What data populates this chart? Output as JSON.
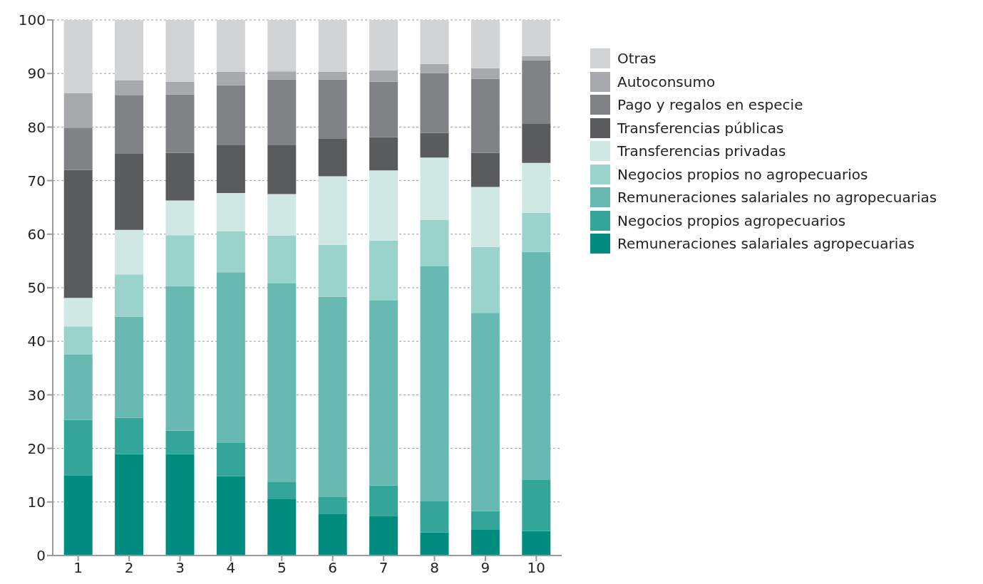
{
  "chart_data": {
    "type": "bar",
    "stacked": true,
    "categories": [
      "1",
      "2",
      "3",
      "4",
      "5",
      "6",
      "7",
      "8",
      "9",
      "10"
    ],
    "ylim": [
      0,
      100
    ],
    "yticks": [
      0,
      10,
      20,
      30,
      40,
      50,
      60,
      70,
      80,
      90,
      100
    ],
    "grid": "y",
    "legend": "top right",
    "series": [
      {
        "name": "Remuneraciones salariales agropecuarias",
        "color": "#008c7e",
        "values": [
          15.0,
          18.9,
          18.9,
          14.8,
          10.5,
          7.7,
          7.4,
          4.3,
          4.8,
          4.6
        ]
      },
      {
        "name": "Negocios propios agropecuarios",
        "color": "#33a699",
        "values": [
          10.3,
          6.8,
          4.4,
          6.2,
          3.2,
          3.3,
          5.7,
          5.9,
          3.5,
          9.6
        ]
      },
      {
        "name": "Remuneraciones salariales no agropecuarias",
        "color": "#68b9b2",
        "values": [
          12.2,
          18.9,
          27.0,
          31.9,
          37.1,
          37.3,
          34.5,
          43.8,
          37.0,
          42.5
        ]
      },
      {
        "name": "Negocios propios no agropecuarios",
        "color": "#9ad2cc",
        "values": [
          5.3,
          7.9,
          9.5,
          7.6,
          8.9,
          9.7,
          11.2,
          8.7,
          12.3,
          7.3
        ]
      },
      {
        "name": "Transferencias privadas",
        "color": "#cfe8e4",
        "values": [
          5.3,
          8.3,
          6.5,
          7.2,
          7.8,
          12.8,
          13.1,
          11.6,
          11.2,
          9.3
        ]
      },
      {
        "name": "Transferencias públicas",
        "color": "#5a5b5d",
        "values": [
          23.9,
          14.2,
          8.9,
          8.9,
          9.2,
          7.0,
          6.2,
          4.6,
          6.4,
          7.3
        ]
      },
      {
        "name": "Pago y regalos en especie",
        "color": "#818285",
        "values": [
          7.9,
          10.9,
          10.9,
          11.2,
          12.2,
          11.1,
          10.4,
          11.2,
          13.8,
          11.9
        ]
      },
      {
        "name": "Autoconsumo",
        "color": "#a8a9ac",
        "values": [
          6.4,
          2.8,
          2.4,
          2.5,
          1.5,
          1.4,
          2.1,
          1.7,
          2.0,
          0.8
        ]
      },
      {
        "name": "Otras",
        "color": "#d2d3d5",
        "values": [
          13.7,
          11.3,
          11.5,
          9.7,
          9.6,
          9.7,
          9.4,
          8.2,
          9.0,
          6.7
        ]
      }
    ]
  }
}
